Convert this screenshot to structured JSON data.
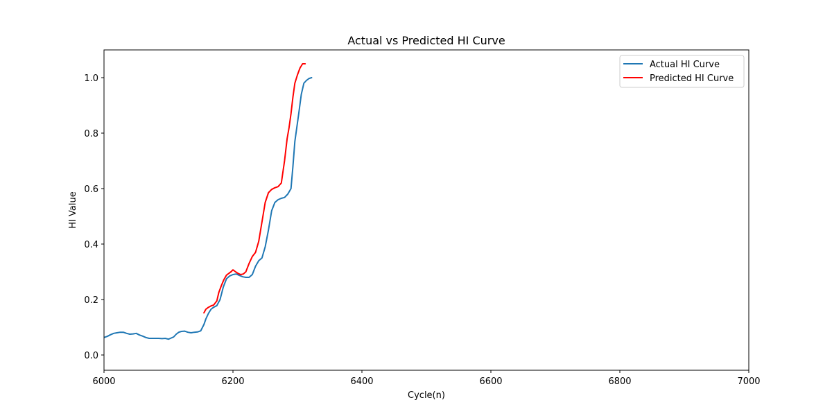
{
  "chart_data": {
    "type": "line",
    "title": "Actual vs Predicted HI Curve",
    "xlabel": "Cycle(n)",
    "ylabel": "HI Value",
    "xlim": [
      6000,
      7000
    ],
    "ylim": [
      -0.055,
      1.1
    ],
    "xticks": [
      6000,
      6200,
      6400,
      6600,
      6800,
      7000
    ],
    "xtick_labels": [
      "6000",
      "6200",
      "6400",
      "6600",
      "6800",
      "7000"
    ],
    "yticks": [
      0.0,
      0.2,
      0.4,
      0.6,
      0.8,
      1.0
    ],
    "ytick_labels": [
      "0.0",
      "0.2",
      "0.4",
      "0.6",
      "0.8",
      "1.0"
    ],
    "grid": false,
    "legend": "upper right",
    "series": [
      {
        "name": "Actual HI Curve",
        "color": "#1f77b4",
        "x": [
          6000,
          6005,
          6010,
          6015,
          6020,
          6025,
          6030,
          6035,
          6040,
          6045,
          6050,
          6055,
          6060,
          6065,
          6070,
          6075,
          6080,
          6085,
          6090,
          6095,
          6100,
          6103,
          6108,
          6112,
          6116,
          6120,
          6125,
          6130,
          6135,
          6140,
          6145,
          6150,
          6155,
          6158,
          6162,
          6166,
          6170,
          6175,
          6180,
          6185,
          6190,
          6195,
          6200,
          6205,
          6210,
          6215,
          6220,
          6225,
          6230,
          6235,
          6240,
          6245,
          6250,
          6255,
          6260,
          6265,
          6270,
          6275,
          6280,
          6285,
          6290,
          6293,
          6296,
          6299,
          6302,
          6306,
          6310,
          6314,
          6318,
          6322
        ],
        "y": [
          0.063,
          0.067,
          0.073,
          0.078,
          0.08,
          0.082,
          0.082,
          0.078,
          0.075,
          0.076,
          0.078,
          0.072,
          0.068,
          0.063,
          0.06,
          0.06,
          0.06,
          0.06,
          0.059,
          0.06,
          0.057,
          0.06,
          0.065,
          0.075,
          0.082,
          0.085,
          0.086,
          0.082,
          0.08,
          0.082,
          0.083,
          0.087,
          0.11,
          0.13,
          0.15,
          0.165,
          0.172,
          0.178,
          0.2,
          0.245,
          0.275,
          0.285,
          0.29,
          0.292,
          0.287,
          0.282,
          0.28,
          0.28,
          0.29,
          0.32,
          0.34,
          0.35,
          0.39,
          0.45,
          0.52,
          0.55,
          0.56,
          0.565,
          0.568,
          0.58,
          0.6,
          0.68,
          0.77,
          0.82,
          0.87,
          0.94,
          0.98,
          0.99,
          0.997,
          1.0
        ]
      },
      {
        "name": "Predicted HI Curve",
        "color": "#ff0000",
        "x": [
          6155,
          6158,
          6162,
          6166,
          6170,
          6175,
          6178,
          6182,
          6186,
          6190,
          6194,
          6197,
          6200,
          6204,
          6208,
          6212,
          6216,
          6220,
          6225,
          6230,
          6235,
          6240,
          6245,
          6250,
          6255,
          6260,
          6265,
          6270,
          6275,
          6280,
          6284,
          6287,
          6290,
          6293,
          6296,
          6300,
          6304,
          6308,
          6312
        ],
        "y": [
          0.152,
          0.165,
          0.172,
          0.177,
          0.18,
          0.195,
          0.225,
          0.25,
          0.272,
          0.288,
          0.295,
          0.3,
          0.307,
          0.3,
          0.294,
          0.29,
          0.292,
          0.3,
          0.33,
          0.355,
          0.37,
          0.41,
          0.48,
          0.55,
          0.585,
          0.597,
          0.603,
          0.607,
          0.62,
          0.7,
          0.78,
          0.82,
          0.87,
          0.93,
          0.98,
          1.01,
          1.035,
          1.05,
          1.05
        ]
      }
    ]
  }
}
